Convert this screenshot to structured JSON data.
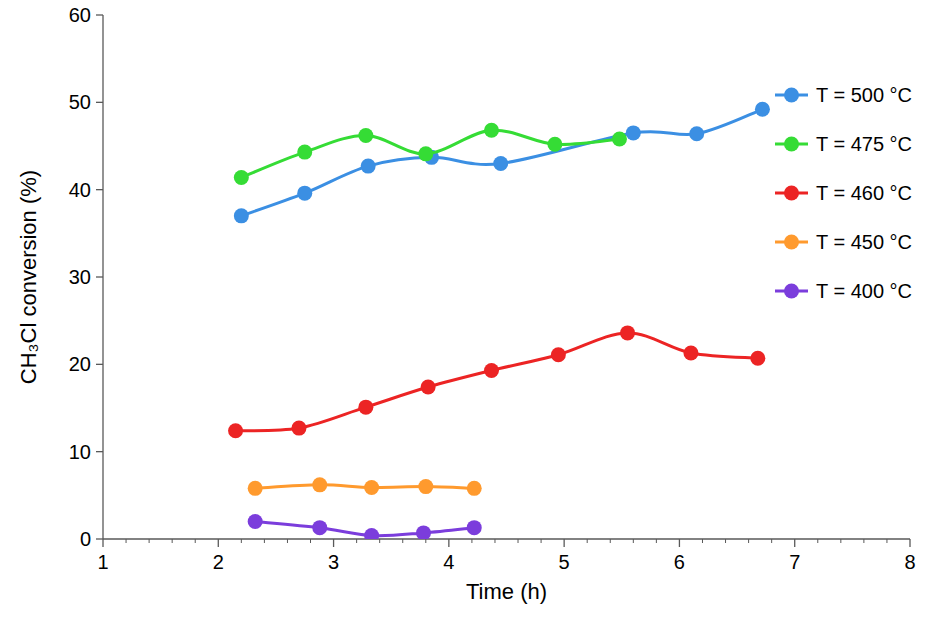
{
  "chart_data": {
    "type": "line",
    "x_label": "Time (h)",
    "y_label": "CH₃Cl conversion  (%)",
    "xlim": [
      1,
      8
    ],
    "xticks": [
      1,
      2,
      3,
      4,
      5,
      6,
      7,
      8
    ],
    "ylim": [
      0,
      60
    ],
    "yticks": [
      0,
      10,
      20,
      30,
      40,
      50,
      60
    ],
    "grid": false,
    "legend": "top-right",
    "marker": "circle",
    "line_style": "smooth",
    "series": [
      {
        "name": "T = 500 °C",
        "color": "#3b8fe3",
        "x": [
          2.2,
          2.75,
          3.3,
          3.85,
          4.45,
          5.6,
          6.15,
          6.72
        ],
        "values": [
          37.0,
          39.6,
          42.7,
          43.7,
          43.0,
          46.5,
          46.4,
          49.2
        ]
      },
      {
        "name": "T = 475 °C",
        "color": "#35dc35",
        "x": [
          2.2,
          2.75,
          3.28,
          3.8,
          4.37,
          4.92,
          5.48
        ],
        "values": [
          41.4,
          44.3,
          46.2,
          44.1,
          46.8,
          45.2,
          45.8
        ]
      },
      {
        "name": "T = 460 °C",
        "color": "#ec2424",
        "x": [
          2.15,
          2.7,
          3.28,
          3.82,
          4.37,
          4.95,
          5.55,
          6.1,
          6.68
        ],
        "values": [
          12.4,
          12.7,
          15.1,
          17.4,
          19.3,
          21.1,
          23.6,
          21.3,
          20.7
        ]
      },
      {
        "name": "T = 450 °C",
        "color": "#ff9a2e",
        "x": [
          2.32,
          2.88,
          3.33,
          3.8,
          4.22
        ],
        "values": [
          5.8,
          6.2,
          5.9,
          6.0,
          5.8
        ]
      },
      {
        "name": "T = 400 °C",
        "color": "#7b3ddc",
        "x": [
          2.32,
          2.88,
          3.33,
          3.78,
          4.22
        ],
        "values": [
          2.0,
          1.3,
          0.4,
          0.7,
          1.3
        ]
      }
    ]
  }
}
